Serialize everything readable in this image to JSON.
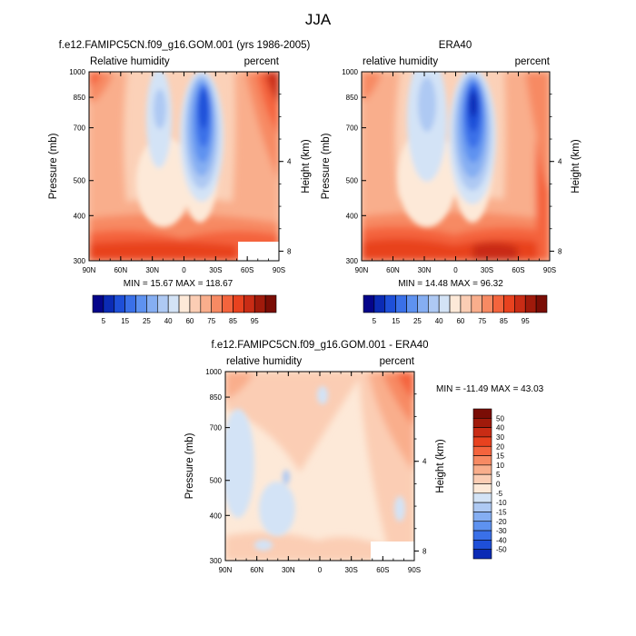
{
  "figure": {
    "main_title": "JJA"
  },
  "chart_data": [
    {
      "type": "heatmap",
      "title": "f.e12.FAMIPC5CN.f09_g16.GOM.001 (yrs 1986-2005)",
      "left_label": "Relative humidity",
      "right_label": "percent",
      "ylabel": "Pressure (mb)",
      "ylabel_right": "Height (km)",
      "x_ticks": [
        "90N",
        "60N",
        "30N",
        "0",
        "30S",
        "60S",
        "90S"
      ],
      "y_ticks": [
        "300",
        "400",
        "500",
        "700",
        "850",
        "1000"
      ],
      "height_ticks": [
        "8",
        "4"
      ],
      "stats": "MIN =  15.67  MAX = 118.67",
      "colorbar_labels": [
        "5",
        "15",
        "25",
        "40",
        "60",
        "75",
        "85",
        "95"
      ],
      "colorbar_colors": [
        "#05058a",
        "#0b2bb5",
        "#1e4fd8",
        "#3a70e8",
        "#5e92f0",
        "#85aef2",
        "#aec9f3",
        "#d3e3f6",
        "#fde9d8",
        "#fbcdb4",
        "#f9ae8c",
        "#f78a63",
        "#f4643d",
        "#e8421f",
        "#c92c15",
        "#a01a0b",
        "#7a0d05"
      ],
      "xlim": [
        90,
        -90
      ],
      "ylim": [
        1000,
        300
      ]
    },
    {
      "type": "heatmap",
      "title": "ERA40",
      "left_label": "relative humidity",
      "right_label": "percent",
      "ylabel": "Pressure (mb)",
      "ylabel_right": "Height (km)",
      "x_ticks": [
        "90N",
        "60N",
        "30N",
        "0",
        "30S",
        "60S",
        "90S"
      ],
      "y_ticks": [
        "300",
        "400",
        "500",
        "700",
        "850",
        "1000"
      ],
      "height_ticks": [
        "8",
        "4"
      ],
      "stats": "MIN =  14.48  MAX =  96.32",
      "colorbar_labels": [
        "5",
        "15",
        "25",
        "40",
        "60",
        "75",
        "85",
        "95"
      ],
      "colorbar_colors": [
        "#05058a",
        "#0b2bb5",
        "#1e4fd8",
        "#3a70e8",
        "#5e92f0",
        "#85aef2",
        "#aec9f3",
        "#d3e3f6",
        "#fde9d8",
        "#fbcdb4",
        "#f9ae8c",
        "#f78a63",
        "#f4643d",
        "#e8421f",
        "#c92c15",
        "#a01a0b",
        "#7a0d05"
      ],
      "xlim": [
        90,
        -90
      ],
      "ylim": [
        1000,
        300
      ]
    },
    {
      "type": "heatmap",
      "title": "f.e12.FAMIPC5CN.f09_g16.GOM.001 - ERA40",
      "left_label": "relative humidity",
      "right_label": "percent",
      "ylabel": "Pressure (mb)",
      "ylabel_right": "Height (km)",
      "x_ticks": [
        "90N",
        "60N",
        "30N",
        "0",
        "30S",
        "60S",
        "90S"
      ],
      "y_ticks": [
        "300",
        "400",
        "500",
        "700",
        "850",
        "1000"
      ],
      "height_ticks": [
        "8",
        "4"
      ],
      "stats": "MIN = -11.49  MAX =  43.03",
      "colorbar_labels": [
        "50",
        "40",
        "30",
        "20",
        "15",
        "10",
        "5",
        "0",
        "-5",
        "-10",
        "-15",
        "-20",
        "-30",
        "-40",
        "-50"
      ],
      "colorbar_colors": [
        "#7a0d05",
        "#a01a0b",
        "#c92c15",
        "#e8421f",
        "#f4643d",
        "#f78a63",
        "#f9ae8c",
        "#fbcdb4",
        "#fde9d8",
        "#d3e3f6",
        "#aec9f3",
        "#85aef2",
        "#5e92f0",
        "#3a70e8",
        "#1e4fd8",
        "#0b2bb5"
      ],
      "xlim": [
        90,
        -90
      ],
      "ylim": [
        1000,
        300
      ]
    }
  ]
}
